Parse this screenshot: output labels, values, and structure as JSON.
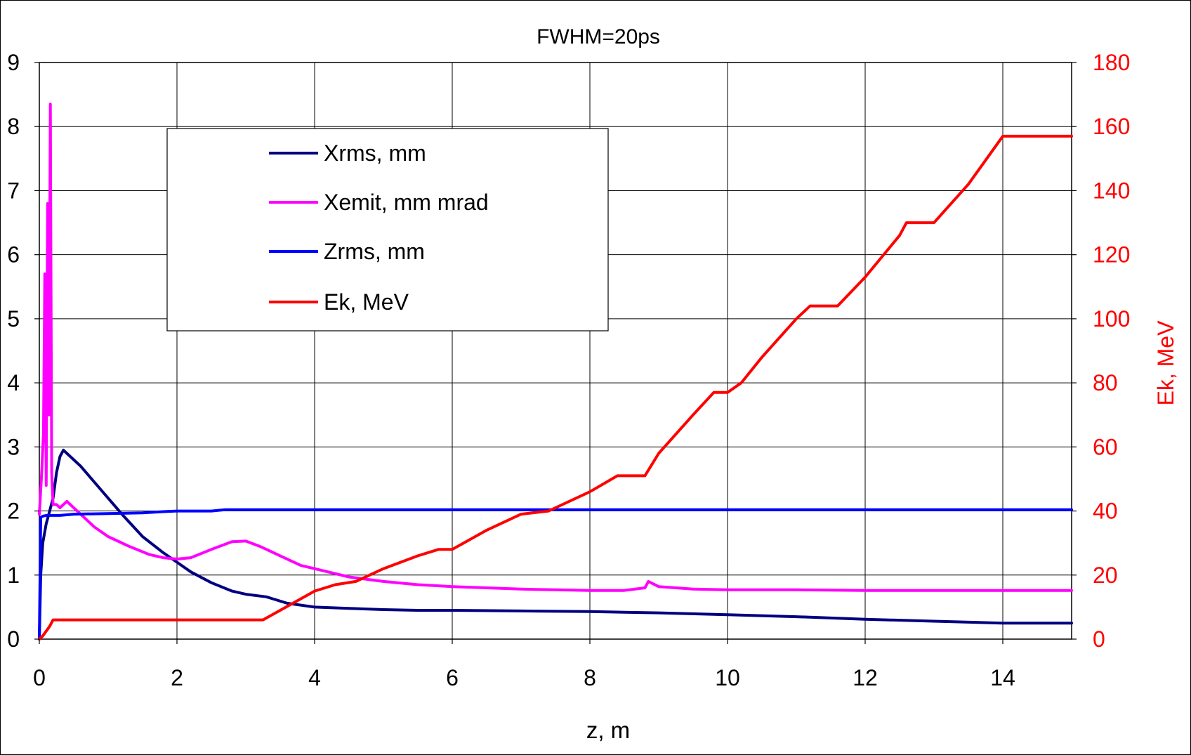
{
  "chart_data": {
    "type": "line",
    "title": "FWHM=20ps",
    "xlabel": "z, m",
    "ylabel": "",
    "y2label": "Ek, MeV",
    "xlim": [
      0,
      15
    ],
    "ylim": [
      0,
      9
    ],
    "y2lim": [
      0,
      180
    ],
    "xticks": [
      "0",
      "2",
      "4",
      "6",
      "8",
      "10",
      "12",
      "14"
    ],
    "yticks": [
      "0",
      "1",
      "2",
      "3",
      "4",
      "5",
      "6",
      "7",
      "8",
      "9"
    ],
    "y2ticks": [
      "0",
      "20",
      "40",
      "60",
      "80",
      "100",
      "120",
      "140",
      "160",
      "180"
    ],
    "grid": true,
    "legend_position": "upper-left",
    "series": [
      {
        "name": "Xrms, mm",
        "axis": "left",
        "color": "#000080",
        "x": [
          0,
          0.02,
          0.05,
          0.1,
          0.15,
          0.2,
          0.25,
          0.3,
          0.35,
          0.4,
          0.6,
          0.8,
          1.0,
          1.2,
          1.5,
          1.8,
          2.0,
          2.2,
          2.5,
          2.8,
          3.0,
          3.3,
          3.6,
          4.0,
          4.5,
          5.0,
          5.5,
          6.0,
          7.0,
          8.0,
          9.0,
          10.0,
          11.0,
          12.0,
          13.0,
          14.0,
          15.0
        ],
        "y": [
          0,
          1.0,
          1.5,
          1.8,
          2.0,
          2.2,
          2.6,
          2.85,
          2.95,
          2.9,
          2.7,
          2.45,
          2.2,
          1.95,
          1.6,
          1.35,
          1.2,
          1.05,
          0.88,
          0.75,
          0.7,
          0.66,
          0.56,
          0.5,
          0.48,
          0.46,
          0.45,
          0.45,
          0.44,
          0.43,
          0.41,
          0.38,
          0.35,
          0.31,
          0.28,
          0.25,
          0.25
        ]
      },
      {
        "name": "Xemit, mm mrad",
        "axis": "left",
        "color": "#ff00ff",
        "x": [
          0,
          0.03,
          0.06,
          0.08,
          0.1,
          0.12,
          0.14,
          0.16,
          0.18,
          0.2,
          0.25,
          0.3,
          0.4,
          0.6,
          0.8,
          1.0,
          1.3,
          1.6,
          1.8,
          2.0,
          2.2,
          2.5,
          2.8,
          3.0,
          3.2,
          3.5,
          3.8,
          4.0,
          4.5,
          5.0,
          5.5,
          6.0,
          6.5,
          7.0,
          7.5,
          8.0,
          8.5,
          8.8,
          8.85,
          9.0,
          9.5,
          10.0,
          11.0,
          12.0,
          13.0,
          14.0,
          15.0
        ],
        "y": [
          1.95,
          2.5,
          3.2,
          5.7,
          2.4,
          6.8,
          3.5,
          8.35,
          2.6,
          2.1,
          2.1,
          2.05,
          2.15,
          1.95,
          1.75,
          1.6,
          1.45,
          1.32,
          1.27,
          1.25,
          1.27,
          1.4,
          1.52,
          1.53,
          1.45,
          1.3,
          1.15,
          1.1,
          0.97,
          0.9,
          0.85,
          0.82,
          0.8,
          0.78,
          0.77,
          0.76,
          0.76,
          0.8,
          0.9,
          0.82,
          0.78,
          0.77,
          0.77,
          0.76,
          0.76,
          0.76,
          0.76
        ]
      },
      {
        "name": "Zrms, mm",
        "axis": "left",
        "color": "#0000ff",
        "x": [
          0,
          0.02,
          0.05,
          0.1,
          0.3,
          0.5,
          1.0,
          1.5,
          1.8,
          2.0,
          2.5,
          2.7,
          3.0,
          5.0,
          10.0,
          15.0
        ],
        "y": [
          0,
          1.9,
          1.92,
          1.93,
          1.93,
          1.95,
          1.96,
          1.97,
          1.99,
          2.0,
          2.0,
          2.02,
          2.02,
          2.02,
          2.02,
          2.02
        ]
      },
      {
        "name": "Ek, MeV",
        "axis": "right",
        "color": "#ff0000",
        "x": [
          0,
          0.05,
          0.15,
          0.2,
          1.0,
          2.0,
          3.0,
          3.25,
          3.5,
          4.0,
          4.3,
          4.6,
          5.0,
          5.5,
          5.8,
          6.0,
          6.5,
          7.0,
          7.4,
          7.5,
          8.0,
          8.4,
          8.8,
          9.0,
          9.5,
          9.8,
          10.0,
          10.2,
          10.5,
          11.0,
          11.2,
          11.6,
          12.0,
          12.5,
          12.6,
          13.0,
          13.5,
          14.0,
          14.5,
          15.0
        ],
        "y": [
          0,
          1,
          4,
          6,
          6,
          6,
          6,
          6,
          9,
          15,
          17,
          18,
          22,
          26,
          28,
          28,
          34,
          39,
          40,
          41,
          46,
          51,
          51,
          58,
          70,
          77,
          77,
          80,
          88,
          100,
          104,
          104,
          113,
          126,
          130,
          130,
          142,
          157,
          157,
          157
        ]
      }
    ]
  }
}
